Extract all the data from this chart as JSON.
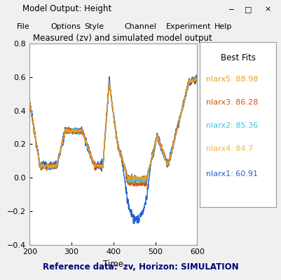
{
  "title": "Model Output: Height",
  "plot_title": "Measured (zv) and simulated model output",
  "xlabel": "Time",
  "ylabel": "",
  "footer": "Reference data:  zv, Horizon: SIMULATION",
  "xlim": [
    200,
    600
  ],
  "ylim": [
    -0.4,
    0.8
  ],
  "yticks": [
    -0.4,
    -0.2,
    0.0,
    0.2,
    0.4,
    0.6,
    0.8
  ],
  "xticks": [
    200,
    300,
    400,
    500,
    600
  ],
  "legend_title": "Best Fits",
  "legend_entries": [
    {
      "label": "nlarx5: 88.98",
      "color": "#E8A020"
    },
    {
      "label": "nlarx3: 86.28",
      "color": "#D45010"
    },
    {
      "label": "nlarx2: 85.36",
      "color": "#40C0E0"
    },
    {
      "label": "nlarx4: 84.7",
      "color": "#F0B840"
    },
    {
      "label": "nlarx1: 60.91",
      "color": "#2060D0"
    }
  ],
  "measured_color": "#606060",
  "bg_color": "#F0F0F0",
  "plot_bg": "#FFFFFF",
  "titlebar_color": "#F0F0F0",
  "menubar_color": "#F0F0F0",
  "window_title": "Model Output: Height",
  "menu_items": [
    "File",
    "Options",
    "Style",
    "Channel",
    "Experiment",
    "Help"
  ],
  "footer_color": "#000080"
}
